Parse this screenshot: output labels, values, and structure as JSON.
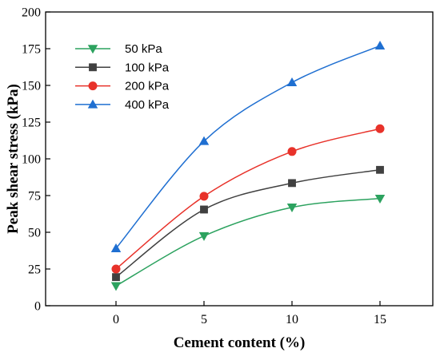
{
  "chart_data": {
    "type": "line",
    "title": "",
    "xlabel": "Cement content (%)",
    "ylabel": "Peak shear stress (kPa)",
    "x": [
      0,
      5,
      10,
      15
    ],
    "xlim": [
      -4,
      18
    ],
    "ylim": [
      0,
      200
    ],
    "xticks": [
      0,
      5,
      10,
      15
    ],
    "yticks": [
      0,
      25,
      50,
      75,
      100,
      125,
      150,
      175,
      200
    ],
    "grid": false,
    "legend_position": "top-left",
    "series": [
      {
        "name": "50 kPa",
        "color": "#2ca25f",
        "marker": "triangle-down",
        "values": [
          13.5,
          47.5,
          67,
          73
        ]
      },
      {
        "name": "100 kPa",
        "color": "#404040",
        "marker": "square",
        "values": [
          19.5,
          65.5,
          83.5,
          92.5
        ]
      },
      {
        "name": "200 kPa",
        "color": "#e8322a",
        "marker": "circle",
        "values": [
          25,
          74.5,
          105,
          120.5
        ]
      },
      {
        "name": "400 kPa",
        "color": "#1f6fd1",
        "marker": "triangle-up",
        "values": [
          39,
          112,
          152,
          177
        ]
      }
    ]
  }
}
